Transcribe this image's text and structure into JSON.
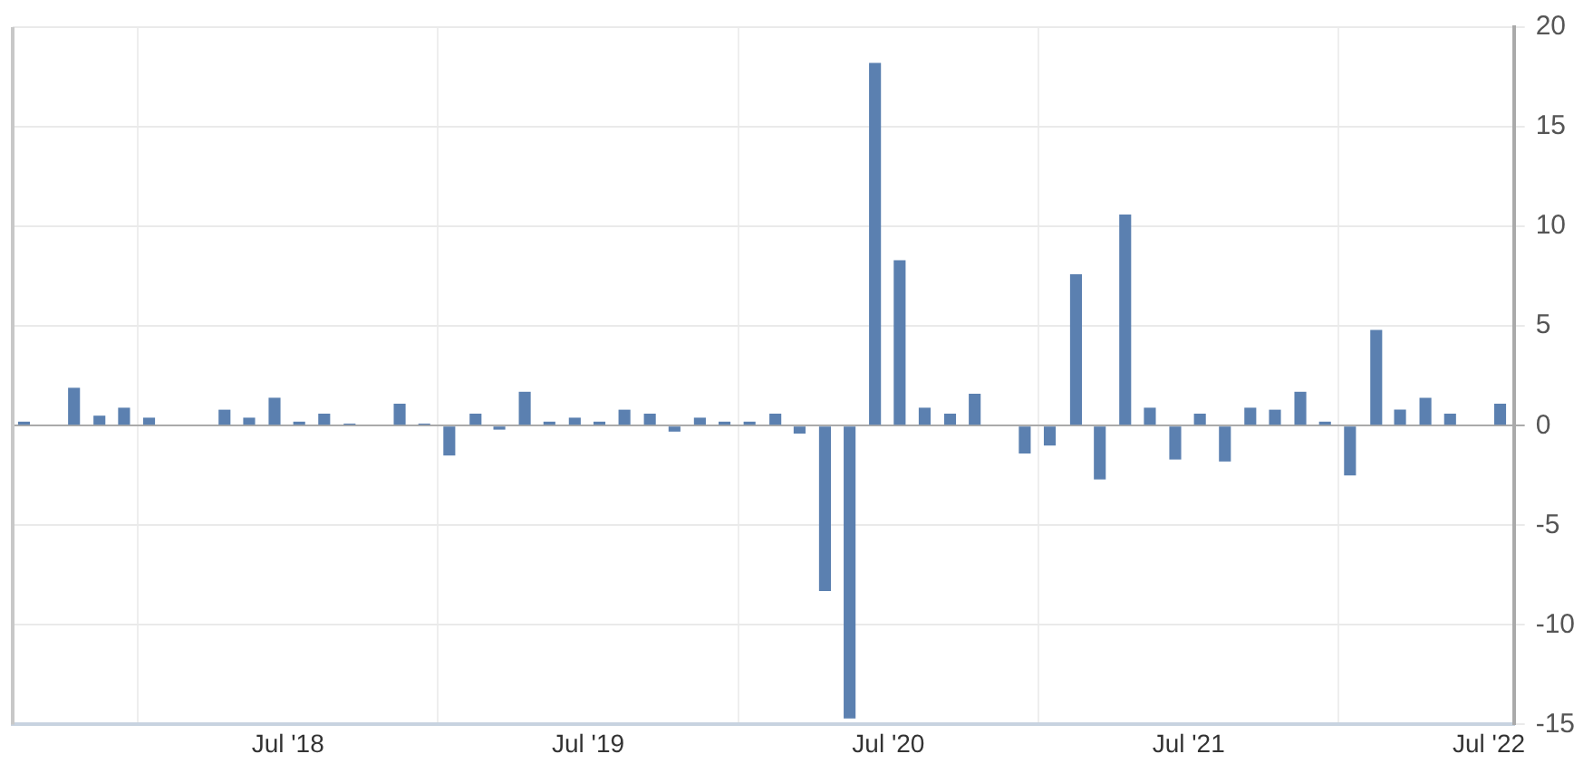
{
  "chart_data": {
    "type": "bar",
    "color": "#5b80b0",
    "x": [
      "2017-08-15",
      "2017-10-15",
      "2017-11-15",
      "2017-12-15",
      "2018-01-15",
      "2018-04-15",
      "2018-05-15",
      "2018-06-15",
      "2018-07-15",
      "2018-08-15",
      "2018-09-15",
      "2018-11-15",
      "2018-12-15",
      "2019-01-15",
      "2019-02-15",
      "2019-03-15",
      "2019-04-15",
      "2019-05-15",
      "2019-06-15",
      "2019-07-15",
      "2019-08-15",
      "2019-09-15",
      "2019-10-15",
      "2019-11-15",
      "2019-12-15",
      "2020-01-15",
      "2020-02-15",
      "2020-03-15",
      "2020-04-15",
      "2020-05-15",
      "2020-06-15",
      "2020-07-15",
      "2020-08-15",
      "2020-09-15",
      "2020-10-15",
      "2020-12-15",
      "2021-01-15",
      "2021-02-15",
      "2021-03-15",
      "2021-04-15",
      "2021-05-15",
      "2021-06-15",
      "2021-07-15",
      "2021-08-15",
      "2021-09-15",
      "2021-10-15",
      "2021-11-15",
      "2021-12-15",
      "2022-01-15",
      "2022-02-15",
      "2022-03-15",
      "2022-04-15",
      "2022-05-15",
      "2022-07-15"
    ],
    "values": [
      0.2,
      1.9,
      0.5,
      0.9,
      0.4,
      0.8,
      0.4,
      1.4,
      0.2,
      0.6,
      0.1,
      1.1,
      0.1,
      -1.5,
      0.6,
      -0.2,
      1.7,
      0.2,
      0.4,
      0.2,
      0.8,
      0.6,
      -0.3,
      0.4,
      0.2,
      0.2,
      0.6,
      -0.4,
      -8.3,
      -14.7,
      18.2,
      8.3,
      0.9,
      0.6,
      1.6,
      -1.4,
      -1.0,
      7.6,
      -2.7,
      10.6,
      0.9,
      -1.7,
      0.6,
      -1.8,
      0.9,
      0.8,
      1.7,
      0.2,
      -2.5,
      4.8,
      0.8,
      1.4,
      0.6,
      1.1
    ],
    "xlim": [
      "2017-08",
      "2022-08"
    ],
    "xticks": [
      {
        "value": "2018-07",
        "label": "Jul '18"
      },
      {
        "value": "2019-07",
        "label": "Jul '19"
      },
      {
        "value": "2020-07",
        "label": "Jul '20"
      },
      {
        "value": "2021-07",
        "label": "Jul '21"
      },
      {
        "value": "2022-07",
        "label": "Jul '22"
      }
    ],
    "ylim": [
      -15,
      20
    ],
    "yticks": [
      -15,
      -10,
      -5,
      0,
      5,
      10,
      15,
      20
    ],
    "grid": true,
    "legend": false
  }
}
